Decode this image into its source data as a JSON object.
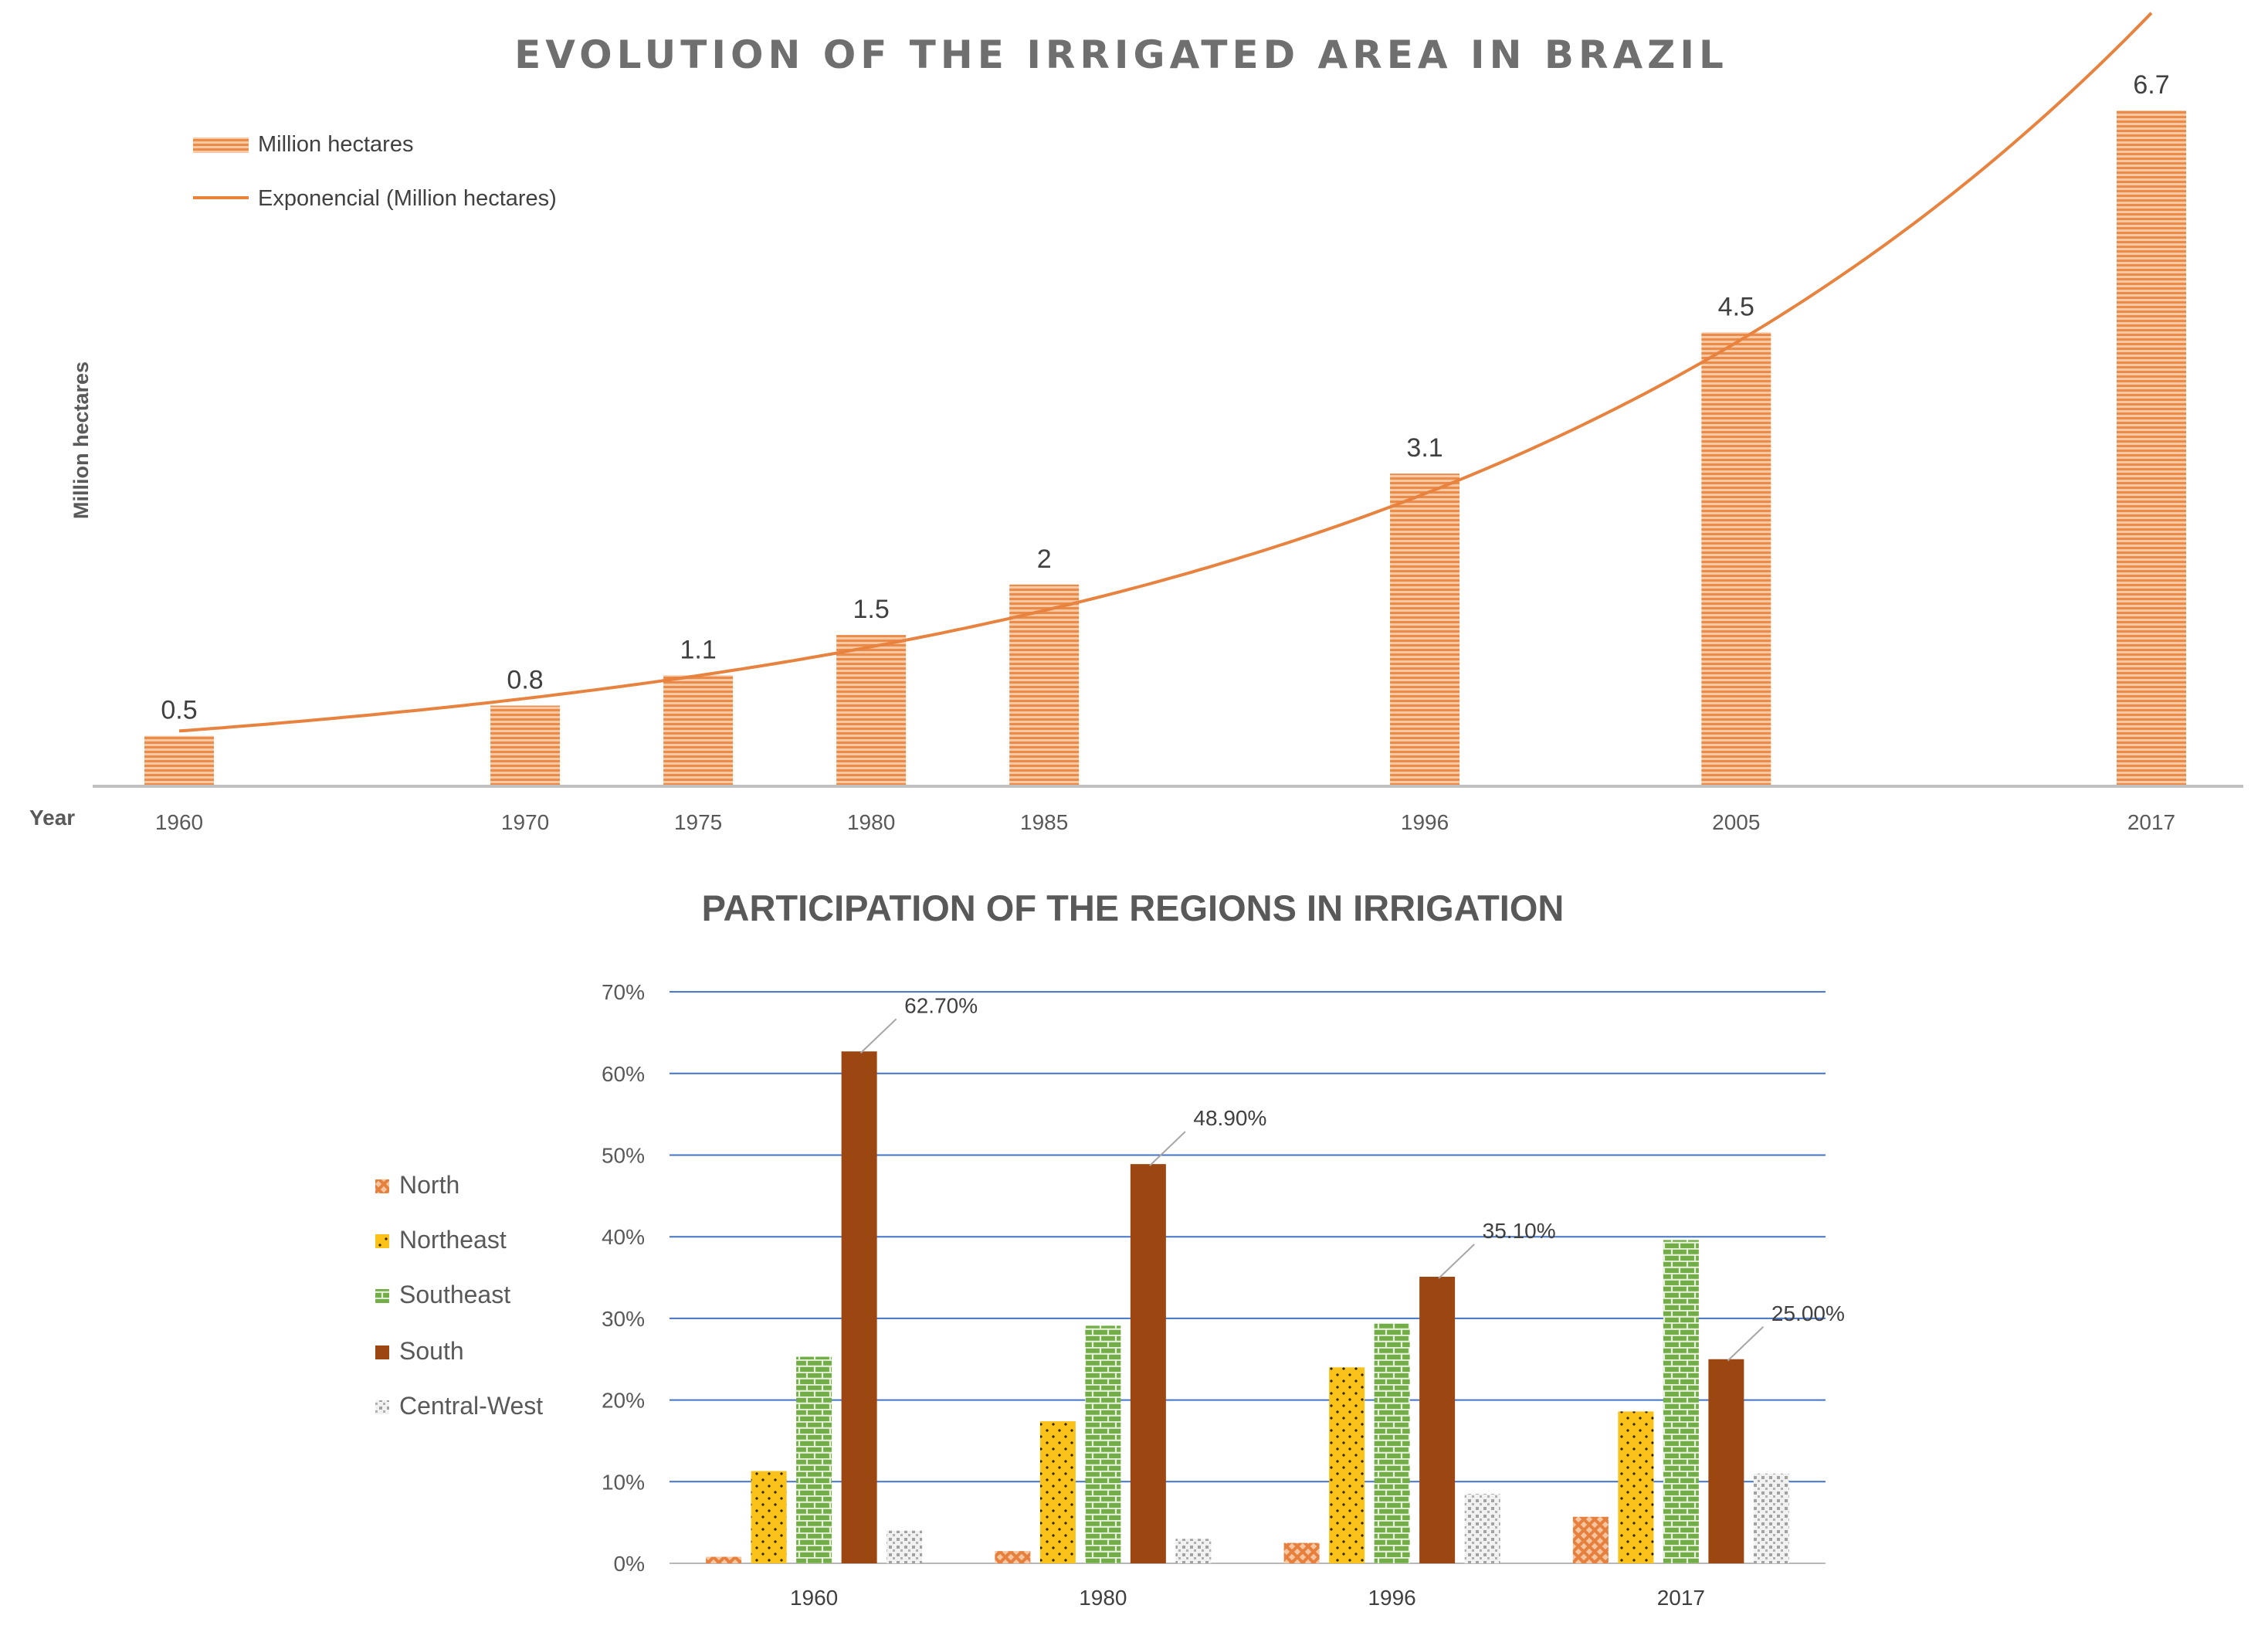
{
  "chart_data": [
    {
      "type": "bar",
      "title": "EVOLUTION OF THE IRRIGATED AREA IN BRAZIL",
      "xlabel": "Year",
      "ylabel": "Million hectares",
      "categories": [
        "1960",
        "1970",
        "1975",
        "1980",
        "1985",
        "1996",
        "2005",
        "2017"
      ],
      "x": [
        1960,
        1970,
        1975,
        1980,
        1985,
        1996,
        2005,
        2017
      ],
      "series": [
        {
          "name": "Million hectares",
          "type": "bar",
          "values": [
            0.5,
            0.8,
            1.1,
            1.5,
            2,
            3.1,
            4.5,
            6.7
          ]
        },
        {
          "name": "Exponencial (Million hectares)",
          "type": "line",
          "trend": "exponential"
        }
      ],
      "data_labels": [
        "0.5",
        "0.8",
        "1.1",
        "1.5",
        "2",
        "3.1",
        "4.5",
        "6.7"
      ],
      "ylim": [
        0,
        7
      ],
      "legend": "top-left",
      "grid": false,
      "color": "#ee8f4e",
      "line_color": "#e8823f"
    },
    {
      "type": "bar",
      "title": "PARTICIPATION OF THE REGIONS IN IRRIGATION",
      "categories": [
        "1960",
        "1980",
        "1996",
        "2017"
      ],
      "series": [
        {
          "name": "North",
          "values": [
            0.8,
            1.5,
            2.5,
            5.7
          ],
          "color": "#ee8f4e"
        },
        {
          "name": "Northeast",
          "values": [
            11.3,
            17.4,
            24.0,
            18.6
          ],
          "color": "#f7c41e"
        },
        {
          "name": "Southeast",
          "values": [
            25.3,
            29.1,
            29.4,
            39.6
          ],
          "color": "#72ad47"
        },
        {
          "name": "South",
          "values": [
            62.7,
            48.9,
            35.1,
            25.0
          ],
          "color": "#9c4712"
        },
        {
          "name": "Central-West",
          "values": [
            4.0,
            3.0,
            8.5,
            11.0
          ],
          "color": "#a8a8a8"
        }
      ],
      "data_labels": [
        "62.70%",
        "48.90%",
        "35.10%",
        "25.00%"
      ],
      "yticks": [
        "0%",
        "10%",
        "20%",
        "30%",
        "40%",
        "50%",
        "60%",
        "70%"
      ],
      "ylim": [
        0,
        70
      ],
      "legend": "left",
      "grid": true,
      "grid_color": "#4473c4"
    }
  ]
}
